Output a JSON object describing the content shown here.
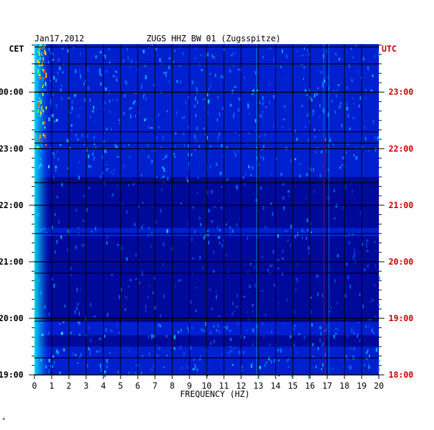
{
  "header": {
    "date": "Jan17,2012",
    "station": "ZUGS HHZ BW 01 (Zugsspitze)",
    "left_zone": "CET",
    "right_zone": "UTC"
  },
  "footer": {
    "mark": "*"
  },
  "colors": {
    "background": "#ffffff",
    "axis_text": "#000000",
    "utc_text": "#cc0000",
    "spectrum_low": "#000080",
    "spectrum_mid": "#0040ff",
    "spectrum_high": "#00ffff",
    "spectrum_peak": "#ff4000",
    "grid_line": "#000000",
    "marker_line": "#b00000"
  },
  "chart_data": {
    "type": "heatmap",
    "title": "ZUGS HHZ BW 01 (Zugsspitze)",
    "xlabel": "FREQUENCY (HZ)",
    "ylabel_left": "CET",
    "ylabel_right": "UTC",
    "xlim": [
      0,
      20
    ],
    "x_ticks": [
      "0",
      "1",
      "2",
      "3",
      "4",
      "5",
      "6",
      "7",
      "8",
      "9",
      "10",
      "11",
      "12",
      "13",
      "14",
      "15",
      "16",
      "17",
      "18",
      "19",
      "20"
    ],
    "y_ticks_left": [
      "19:00",
      "20:00",
      "21:00",
      "22:00",
      "23:00",
      "00:00"
    ],
    "y_ticks_right": [
      "18:00",
      "19:00",
      "20:00",
      "21:00",
      "22:00",
      "23:00"
    ],
    "y_tick_hours": [
      0,
      1,
      2,
      3,
      4,
      5
    ],
    "ylim_hours": [
      0,
      5.85
    ],
    "vertical_grid_hz": [
      1,
      2,
      3,
      4,
      5,
      6,
      7,
      8,
      9,
      10,
      11,
      12,
      13,
      14,
      15,
      16,
      17,
      18,
      19
    ],
    "horizontal_dark_lines_hours": [
      0.3,
      0.95,
      1.8,
      2.5,
      3.4,
      4.1,
      4.3,
      5.0,
      5.5,
      5.8
    ],
    "energetic_bands_hours": [
      [
        3.5,
        5.85
      ],
      [
        2.45,
        2.6
      ],
      [
        0.0,
        0.5
      ],
      [
        0.7,
        0.95
      ]
    ],
    "narrow_spectral_lines_hz": [
      12.9,
      16.0,
      16.8,
      17.1
    ],
    "marker_line_hz": 16.8
  }
}
